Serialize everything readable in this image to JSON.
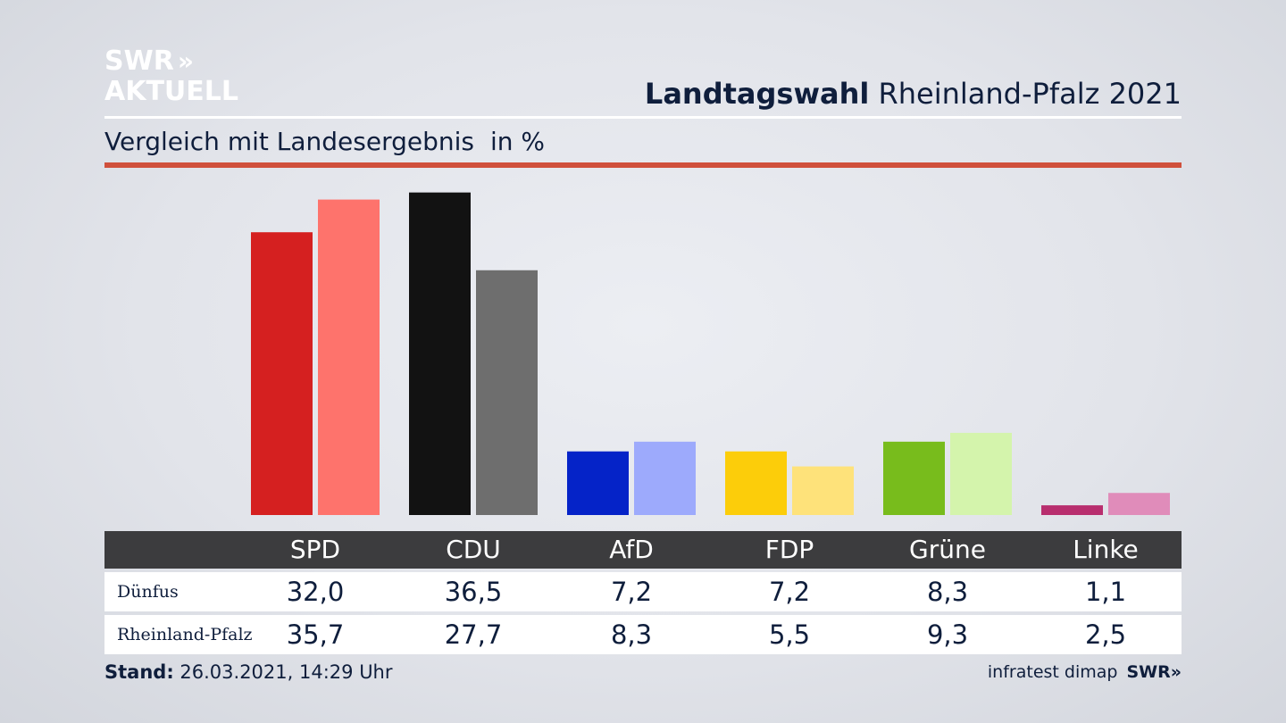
{
  "logo": {
    "line1": "SWR",
    "line1_arrows": "»",
    "line2": "AKTUELL"
  },
  "header": {
    "title_bold": "Landtagswahl",
    "title_rest": "Rheinland-Pfalz 2021"
  },
  "subtitle": {
    "text": "Vergleich mit Landesergebnis",
    "unit": "in %"
  },
  "footer": {
    "stand_label": "Stand:",
    "stand_value": "26.03.2021, 14:29 Uhr",
    "source": "infratest dimap",
    "brand": "SWR»"
  },
  "table": {
    "rows": [
      {
        "label": "Dünfus"
      },
      {
        "label": "Rheinland-Pfalz"
      }
    ]
  },
  "chart_data": {
    "type": "bar",
    "title": "Vergleich mit Landesergebnis",
    "categories": [
      "SPD",
      "CDU",
      "AfD",
      "FDP",
      "Grüne",
      "Linke"
    ],
    "series": [
      {
        "name": "Dünfus",
        "values": [
          32.0,
          36.5,
          7.2,
          7.2,
          8.3,
          1.1
        ],
        "labels": [
          "32,0",
          "36,5",
          "7,2",
          "7,2",
          "8,3",
          "1,1"
        ],
        "colors": [
          "#d52020",
          "#121212",
          "#0523c8",
          "#fccd0a",
          "#78bc1c",
          "#b82e6e"
        ]
      },
      {
        "name": "Rheinland-Pfalz",
        "values": [
          35.7,
          27.7,
          8.3,
          5.5,
          9.3,
          2.5
        ],
        "labels": [
          "35,7",
          "27,7",
          "8,3",
          "5,5",
          "9,3",
          "2,5"
        ],
        "colors": [
          "#fe736c",
          "#6e6e6e",
          "#9daafc",
          "#fee27a",
          "#d4f4ac",
          "#e08cba"
        ]
      }
    ],
    "ylim": [
      0,
      40
    ],
    "grid": false,
    "legend": "none"
  }
}
